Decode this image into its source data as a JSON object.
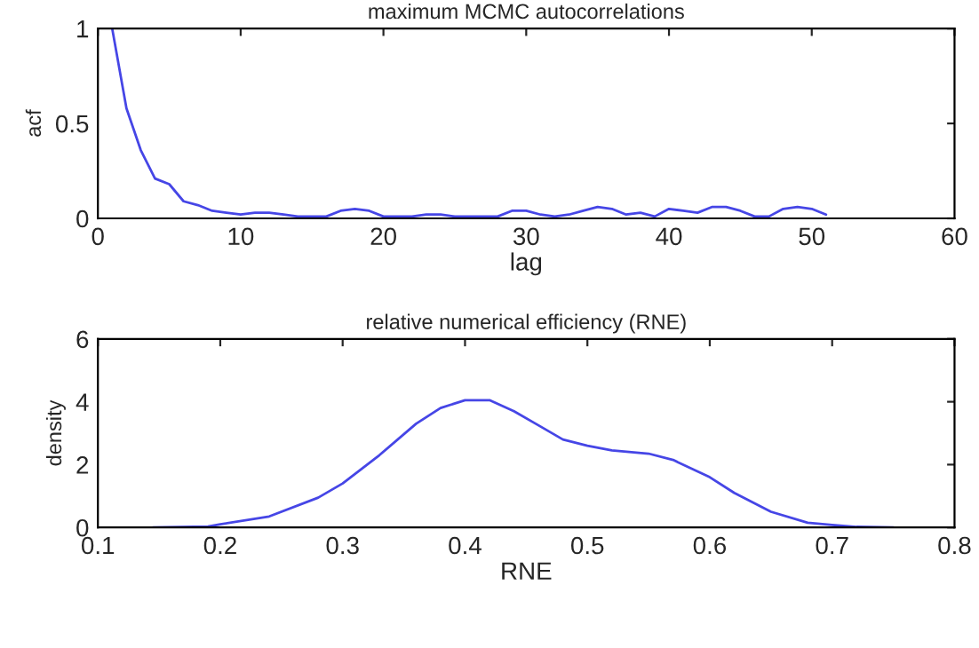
{
  "chart_data": [
    {
      "type": "line",
      "title": "maximum MCMC autocorrelations",
      "xlabel": "lag",
      "ylabel": "acf",
      "xlim": [
        0,
        60
      ],
      "xticks": [
        0,
        10,
        20,
        30,
        40,
        50,
        60
      ],
      "ylim": [
        0,
        1
      ],
      "yticks": [
        0,
        0.5,
        1
      ],
      "grid": false,
      "legend": false,
      "x": [
        1,
        2,
        3,
        4,
        5,
        6,
        7,
        8,
        9,
        10,
        11,
        12,
        13,
        14,
        15,
        16,
        17,
        18,
        19,
        20,
        21,
        22,
        23,
        24,
        25,
        26,
        27,
        28,
        29,
        30,
        31,
        32,
        33,
        34,
        35,
        36,
        37,
        38,
        39,
        40,
        41,
        42,
        43,
        44,
        45,
        46,
        47,
        48,
        49,
        50,
        51
      ],
      "series": [
        {
          "color": "#4646e6",
          "values": [
            1.0,
            0.58,
            0.36,
            0.21,
            0.18,
            0.09,
            0.07,
            0.04,
            0.03,
            0.02,
            0.03,
            0.03,
            0.02,
            0.01,
            0.01,
            0.01,
            0.04,
            0.05,
            0.04,
            0.01,
            0.01,
            0.01,
            0.02,
            0.02,
            0.01,
            0.01,
            0.01,
            0.01,
            0.04,
            0.04,
            0.02,
            0.01,
            0.02,
            0.04,
            0.06,
            0.05,
            0.02,
            0.03,
            0.01,
            0.05,
            0.04,
            0.03,
            0.06,
            0.06,
            0.04,
            0.01,
            0.01,
            0.05,
            0.06,
            0.05,
            0.02
          ]
        }
      ]
    },
    {
      "type": "line",
      "title": "relative numerical efficiency (RNE)",
      "xlabel": "RNE",
      "ylabel": "density",
      "xlim": [
        0.1,
        0.8
      ],
      "xticks": [
        0.1,
        0.2,
        0.3,
        0.4,
        0.5,
        0.6,
        0.7,
        0.8
      ],
      "ylim": [
        0,
        6
      ],
      "yticks": [
        0,
        2,
        4,
        6
      ],
      "grid": false,
      "legend": false,
      "x": [
        0.145,
        0.19,
        0.2,
        0.24,
        0.28,
        0.3,
        0.33,
        0.36,
        0.38,
        0.4,
        0.42,
        0.44,
        0.46,
        0.48,
        0.5,
        0.52,
        0.55,
        0.57,
        0.6,
        0.62,
        0.65,
        0.68,
        0.7,
        0.72,
        0.75
      ],
      "series": [
        {
          "color": "#4646e6",
          "values": [
            0,
            0.03,
            0.1,
            0.35,
            0.95,
            1.4,
            2.3,
            3.3,
            3.8,
            4.05,
            4.05,
            3.7,
            3.25,
            2.8,
            2.6,
            2.45,
            2.35,
            2.15,
            1.6,
            1.1,
            0.5,
            0.15,
            0.08,
            0.02,
            0
          ]
        }
      ]
    }
  ]
}
